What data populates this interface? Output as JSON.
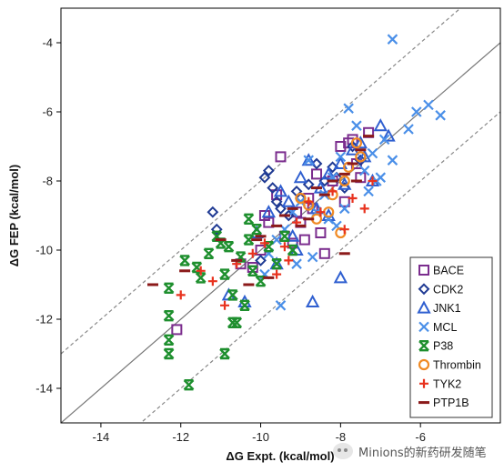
{
  "chart_data": {
    "type": "scatter",
    "xlabel": "ΔG Expt. (kcal/mol)",
    "ylabel": "ΔG FEP (kcal/mol)",
    "xlim": [
      -15,
      -4
    ],
    "ylim": [
      -15,
      -3
    ],
    "xticks": [
      "-14",
      "-12",
      "-10",
      "-8",
      "-6"
    ],
    "yticks": [
      "-4",
      "-6",
      "-8",
      "-10",
      "-12",
      "-14"
    ],
    "grid": false,
    "legend_position": "bottom-right",
    "reference_lines": [
      {
        "style": "solid",
        "offset": 0
      },
      {
        "style": "dashed",
        "offset": 2
      },
      {
        "style": "dashed",
        "offset": -2
      }
    ],
    "series": [
      {
        "name": "BACE",
        "marker": "square",
        "color": "#7b2d8e",
        "points": [
          [
            -12.1,
            -12.3
          ],
          [
            -10.5,
            -10.4
          ],
          [
            -10.2,
            -10.5
          ],
          [
            -10.0,
            -10.0
          ],
          [
            -9.8,
            -9.2
          ],
          [
            -9.6,
            -8.4
          ],
          [
            -9.5,
            -7.3
          ],
          [
            -9.4,
            -9.6
          ],
          [
            -9.2,
            -9.8
          ],
          [
            -9.1,
            -8.9
          ],
          [
            -9.0,
            -9.2
          ],
          [
            -8.8,
            -8.5
          ],
          [
            -8.7,
            -8.8
          ],
          [
            -8.6,
            -7.8
          ],
          [
            -8.5,
            -9.5
          ],
          [
            -8.4,
            -10.1
          ],
          [
            -8.2,
            -8.0
          ],
          [
            -8.0,
            -7.0
          ],
          [
            -7.9,
            -8.6
          ],
          [
            -7.8,
            -6.9
          ],
          [
            -7.7,
            -6.8
          ],
          [
            -7.6,
            -7.5
          ],
          [
            -7.5,
            -7.9
          ],
          [
            -7.3,
            -6.6
          ],
          [
            -9.9,
            -9.0
          ],
          [
            -8.9,
            -9.7
          ]
        ]
      },
      {
        "name": "CDK2",
        "marker": "diamond",
        "color": "#1f3a93",
        "points": [
          [
            -11.2,
            -8.9
          ],
          [
            -11.1,
            -9.4
          ],
          [
            -10.0,
            -10.3
          ],
          [
            -9.9,
            -7.9
          ],
          [
            -9.8,
            -7.7
          ],
          [
            -9.7,
            -8.2
          ],
          [
            -9.6,
            -8.6
          ],
          [
            -9.5,
            -8.8
          ],
          [
            -9.3,
            -9.0
          ],
          [
            -9.1,
            -8.3
          ],
          [
            -9.0,
            -8.5
          ],
          [
            -8.8,
            -8.1
          ],
          [
            -8.6,
            -7.5
          ],
          [
            -8.4,
            -8.0
          ],
          [
            -8.2,
            -7.6
          ],
          [
            -8.1,
            -7.9
          ],
          [
            -7.9,
            -8.2
          ],
          [
            -7.7,
            -7.0
          ],
          [
            -7.5,
            -7.4
          ]
        ]
      },
      {
        "name": "JNK1",
        "marker": "triangle",
        "color": "#2f5fd0",
        "points": [
          [
            -10.8,
            -11.3
          ],
          [
            -10.4,
            -11.5
          ],
          [
            -10.1,
            -9.5
          ],
          [
            -9.8,
            -8.9
          ],
          [
            -9.5,
            -8.3
          ],
          [
            -9.3,
            -8.6
          ],
          [
            -9.0,
            -7.9
          ],
          [
            -8.8,
            -7.4
          ],
          [
            -8.6,
            -8.8
          ],
          [
            -8.5,
            -8.2
          ],
          [
            -8.3,
            -7.8
          ],
          [
            -8.0,
            -7.5
          ],
          [
            -7.9,
            -8.1
          ],
          [
            -7.7,
            -7.1
          ],
          [
            -7.5,
            -6.9
          ],
          [
            -7.4,
            -7.3
          ],
          [
            -7.2,
            -8.0
          ],
          [
            -7.0,
            -6.4
          ],
          [
            -6.8,
            -6.7
          ],
          [
            -8.7,
            -11.5
          ],
          [
            -8.3,
            -9.0
          ],
          [
            -9.2,
            -9.6
          ],
          [
            -9.6,
            -10.4
          ],
          [
            -8.0,
            -10.8
          ],
          [
            -9.1,
            -10.0
          ]
        ]
      },
      {
        "name": "MCL",
        "marker": "x",
        "color": "#4a8fe8",
        "points": [
          [
            -6.7,
            -3.9
          ],
          [
            -5.8,
            -5.8
          ],
          [
            -5.5,
            -6.1
          ],
          [
            -6.1,
            -6.0
          ],
          [
            -6.3,
            -6.5
          ],
          [
            -6.9,
            -6.8
          ],
          [
            -7.2,
            -7.2
          ],
          [
            -7.4,
            -7.7
          ],
          [
            -7.6,
            -6.4
          ],
          [
            -7.8,
            -5.9
          ],
          [
            -8.0,
            -7.3
          ],
          [
            -8.2,
            -7.9
          ],
          [
            -8.4,
            -8.4
          ],
          [
            -8.6,
            -8.9
          ],
          [
            -8.8,
            -7.4
          ],
          [
            -9.0,
            -8.6
          ],
          [
            -9.2,
            -8.9
          ],
          [
            -9.4,
            -9.4
          ],
          [
            -9.6,
            -9.7
          ],
          [
            -9.8,
            -10.1
          ],
          [
            -9.9,
            -10.7
          ],
          [
            -9.5,
            -11.6
          ],
          [
            -8.3,
            -9.1
          ],
          [
            -7.9,
            -8.8
          ],
          [
            -7.1,
            -8.0
          ],
          [
            -6.7,
            -7.4
          ],
          [
            -7.3,
            -8.3
          ],
          [
            -8.7,
            -10.2
          ],
          [
            -9.1,
            -10.4
          ],
          [
            -8.1,
            -9.3
          ],
          [
            -7.0,
            -7.9
          ]
        ]
      },
      {
        "name": "P38",
        "marker": "hourglass",
        "color": "#1e8f2e",
        "points": [
          [
            -12.3,
            -11.1
          ],
          [
            -12.3,
            -11.9
          ],
          [
            -12.3,
            -12.6
          ],
          [
            -12.3,
            -13.0
          ],
          [
            -11.9,
            -10.3
          ],
          [
            -11.8,
            -13.9
          ],
          [
            -11.6,
            -10.5
          ],
          [
            -11.5,
            -10.8
          ],
          [
            -11.3,
            -10.1
          ],
          [
            -11.1,
            -9.6
          ],
          [
            -10.9,
            -10.7
          ],
          [
            -10.8,
            -9.9
          ],
          [
            -10.7,
            -11.3
          ],
          [
            -10.6,
            -12.1
          ],
          [
            -10.5,
            -10.2
          ],
          [
            -10.4,
            -11.6
          ],
          [
            -10.3,
            -9.7
          ],
          [
            -10.2,
            -10.6
          ],
          [
            -10.1,
            -9.4
          ],
          [
            -10.0,
            -10.9
          ],
          [
            -9.8,
            -9.9
          ],
          [
            -9.6,
            -10.4
          ],
          [
            -9.4,
            -9.6
          ],
          [
            -9.2,
            -10.0
          ],
          [
            -10.9,
            -13.0
          ],
          [
            -10.7,
            -12.1
          ],
          [
            -11.0,
            -9.8
          ],
          [
            -10.3,
            -9.1
          ]
        ]
      },
      {
        "name": "Thrombin",
        "marker": "circle",
        "color": "#f08a24",
        "points": [
          [
            -8.0,
            -9.5
          ],
          [
            -8.3,
            -8.9
          ],
          [
            -8.6,
            -9.1
          ],
          [
            -8.8,
            -8.7
          ],
          [
            -9.0,
            -8.5
          ],
          [
            -7.8,
            -7.6
          ],
          [
            -7.6,
            -6.9
          ],
          [
            -7.5,
            -7.3
          ],
          [
            -8.2,
            -8.4
          ],
          [
            -7.9,
            -8.0
          ]
        ]
      },
      {
        "name": "TYK2",
        "marker": "plus",
        "color": "#e8321e",
        "points": [
          [
            -12.0,
            -11.3
          ],
          [
            -11.5,
            -10.6
          ],
          [
            -11.2,
            -10.9
          ],
          [
            -10.9,
            -11.6
          ],
          [
            -10.6,
            -10.4
          ],
          [
            -10.2,
            -10.1
          ],
          [
            -9.9,
            -9.8
          ],
          [
            -9.6,
            -10.7
          ],
          [
            -9.4,
            -9.9
          ],
          [
            -9.1,
            -9.2
          ],
          [
            -8.8,
            -8.6
          ],
          [
            -8.5,
            -8.9
          ],
          [
            -8.2,
            -8.3
          ],
          [
            -7.9,
            -9.4
          ],
          [
            -7.7,
            -8.5
          ],
          [
            -7.4,
            -8.8
          ],
          [
            -7.2,
            -8.0
          ],
          [
            -9.3,
            -10.3
          ]
        ]
      },
      {
        "name": "PTP1B",
        "marker": "dash",
        "color": "#8b1a1a",
        "points": [
          [
            -12.7,
            -11.0
          ],
          [
            -11.9,
            -10.6
          ],
          [
            -11.0,
            -9.7
          ],
          [
            -10.6,
            -10.3
          ],
          [
            -10.3,
            -11.0
          ],
          [
            -10.0,
            -9.6
          ],
          [
            -9.8,
            -10.8
          ],
          [
            -9.6,
            -9.3
          ],
          [
            -9.4,
            -9.0
          ],
          [
            -9.2,
            -8.8
          ],
          [
            -9.0,
            -9.3
          ],
          [
            -8.8,
            -9.1
          ],
          [
            -8.6,
            -8.2
          ],
          [
            -8.4,
            -8.4
          ],
          [
            -8.2,
            -8.0
          ],
          [
            -7.9,
            -7.8
          ],
          [
            -7.7,
            -7.5
          ],
          [
            -7.5,
            -7.1
          ],
          [
            -7.3,
            -6.7
          ],
          [
            -7.9,
            -10.1
          ],
          [
            -10.1,
            -9.7
          ],
          [
            -7.6,
            -8.0
          ]
        ]
      }
    ]
  },
  "watermark": "Minions的新药研发随笔"
}
